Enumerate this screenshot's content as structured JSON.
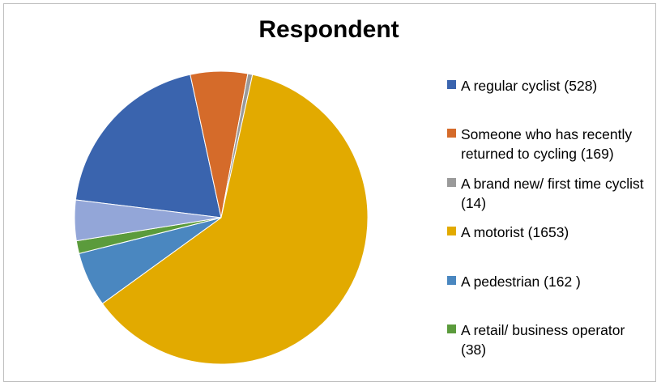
{
  "chart_data": {
    "type": "pie",
    "title": "Respondent",
    "legend_position": "right",
    "slices": [
      {
        "label": "A regular cyclist (528)",
        "value": 528,
        "color": "#3a64ae"
      },
      {
        "label": "Someone who has recently returned to cycling (169)",
        "value": 169,
        "color": "#d56b2a"
      },
      {
        "label": "A brand new/ first time cyclist (14)",
        "value": 14,
        "color": "#9a9a9a"
      },
      {
        "label": "A motorist (1653)",
        "value": 1653,
        "color": "#e2aa00"
      },
      {
        "label": "A pedestrian (162 )",
        "value": 162,
        "color": "#4a87c0"
      },
      {
        "label": "A retail/ business operator (38)",
        "value": 38,
        "color": "#5b9b3c"
      },
      {
        "label": "",
        "value": 120,
        "color": "#93a6d8"
      }
    ]
  }
}
